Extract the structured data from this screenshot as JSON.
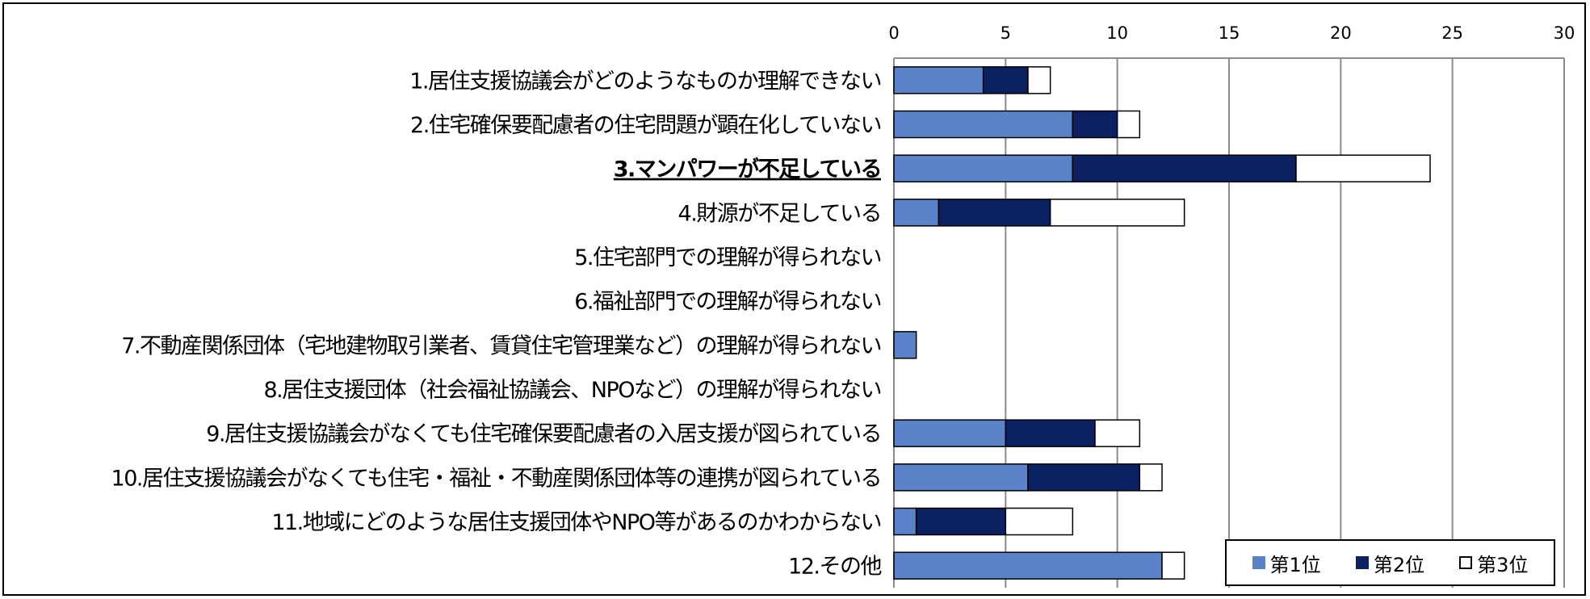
{
  "chart_data": {
    "type": "bar",
    "orientation": "horizontal",
    "stacked": true,
    "title": "",
    "xlabel": "",
    "ylabel": "",
    "xlim": [
      0,
      30
    ],
    "x_ticks": [
      0,
      5,
      10,
      15,
      20,
      25,
      30
    ],
    "x_axis_position": "top",
    "grid": true,
    "legend_position": "bottom-right",
    "categories": [
      "1.居住支援協議会がどのようなものか理解できない",
      "2.住宅確保要配慮者の住宅問題が顕在化していない",
      "3.マンパワーが不足している",
      "4.財源が不足している",
      "5.住宅部門での理解が得られない",
      "6.福祉部門での理解が得られない",
      "7.不動産関係団体（宅地建物取引業者、賃貸住宅管理業など）の理解が得られない",
      "8.居住支援団体（社会福祉協議会、NPOなど）の理解が得られない",
      "9.居住支援協議会がなくても住宅確保要配慮者の入居支援が図られている",
      "10.居住支援協議会がなくても住宅・福祉・不動産関係団体等の連携が図られている",
      "11.地域にどのような居住支援団体やNPO等があるのかわからない",
      "12.その他"
    ],
    "emphasized_category_index": 2,
    "series": [
      {
        "name": "第1位",
        "color": "#5a82c8",
        "values": [
          4,
          8,
          8,
          2,
          0,
          0,
          1,
          0,
          5,
          6,
          1,
          12
        ]
      },
      {
        "name": "第2位",
        "color": "#0b2162",
        "values": [
          2,
          2,
          10,
          5,
          0,
          0,
          0,
          0,
          4,
          5,
          4,
          0
        ]
      },
      {
        "name": "第3位",
        "color": "#ffffff",
        "values": [
          1,
          1,
          6,
          6,
          0,
          0,
          0,
          0,
          2,
          1,
          3,
          1
        ]
      }
    ]
  }
}
